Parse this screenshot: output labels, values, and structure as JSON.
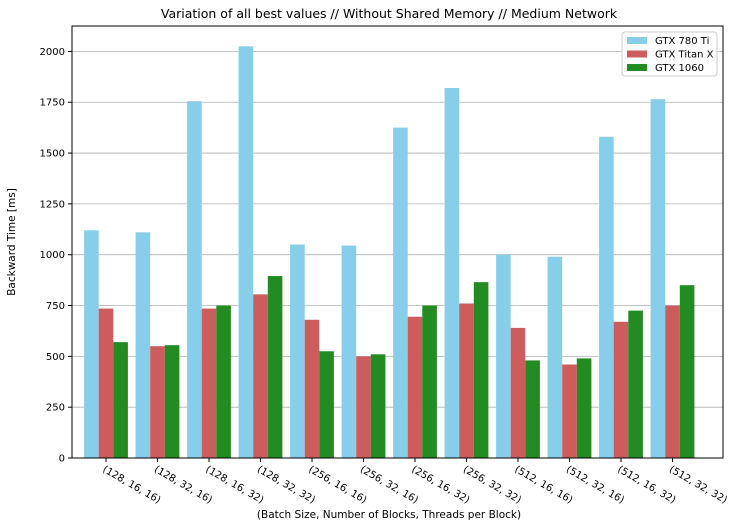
{
  "chart_data": {
    "type": "bar",
    "title": "Variation of all best values // Without Shared Memory // Medium Network",
    "xlabel": "(Batch Size, Number of Blocks, Threads per Block)",
    "ylabel": "Backward Time [ms]",
    "ylim": [
      0,
      2125
    ],
    "yticks": [
      0,
      250,
      500,
      750,
      1000,
      1250,
      1500,
      1750,
      2000
    ],
    "grid": "horizontal",
    "legend_position": "top-right",
    "categories": [
      "(128, 16, 16)",
      "(128, 32, 16)",
      "(128, 16, 32)",
      "(128, 32, 32)",
      "(256, 16, 16)",
      "(256, 32, 16)",
      "(256, 16, 32)",
      "(256, 32, 32)",
      "(512, 16, 16)",
      "(512, 32, 16)",
      "(512, 16, 32)",
      "(512, 32, 32)"
    ],
    "series": [
      {
        "name": "GTX 780 Ti",
        "color": "#87ceeb",
        "values": [
          1120,
          1110,
          1755,
          2025,
          1050,
          1045,
          1625,
          1820,
          1000,
          990,
          1580,
          1765
        ]
      },
      {
        "name": "GTX Titan X",
        "color": "#cd5c5c",
        "values": [
          735,
          550,
          735,
          805,
          680,
          500,
          695,
          760,
          640,
          460,
          670,
          750
        ]
      },
      {
        "name": "GTX 1060",
        "color": "#228b22",
        "values": [
          570,
          555,
          750,
          895,
          525,
          510,
          750,
          865,
          480,
          490,
          725,
          850
        ]
      }
    ]
  }
}
